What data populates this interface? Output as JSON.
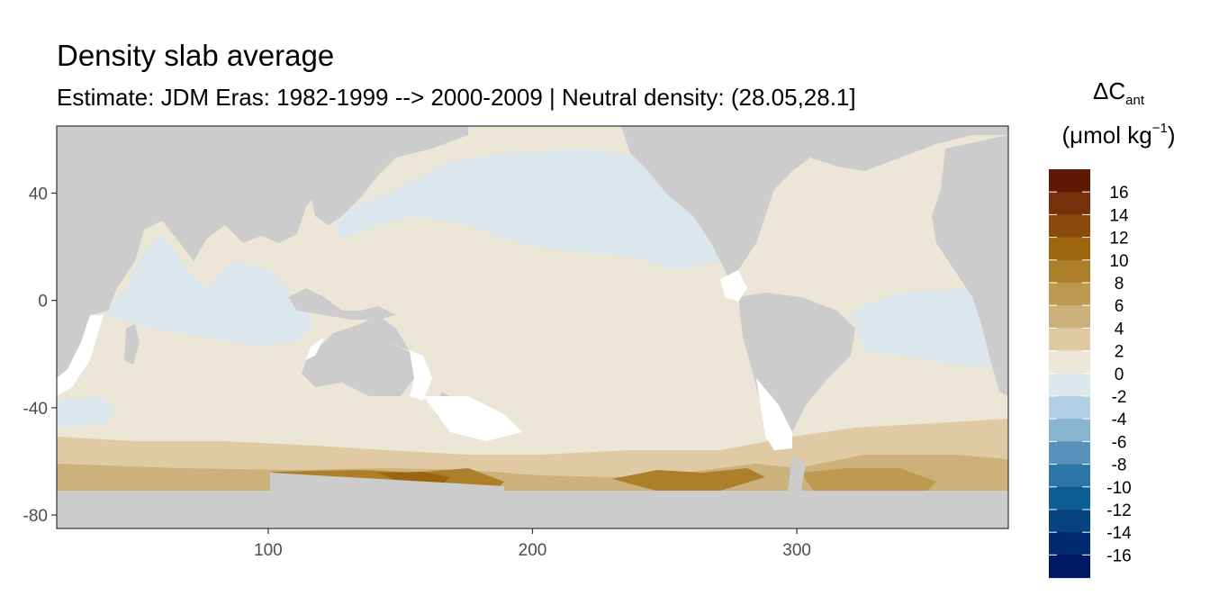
{
  "title": "Density slab average",
  "subtitle": "Estimate: JDM Eras: 1982-1999 --> 2000-2009 | Neutral density: (28.05,28.1]",
  "legend": {
    "title_symbol": "ΔC",
    "title_subscript": "ant",
    "unit_open": "(μmol kg",
    "unit_superscript": "−1",
    "unit_close": ")",
    "labels": [
      "16",
      "14",
      "12",
      "10",
      "8",
      "6",
      "4",
      "2",
      "0",
      "-2",
      "-4",
      "-6",
      "-8",
      "-10",
      "-12",
      "-14",
      "-16"
    ],
    "colors": [
      "#5e1a05",
      "#77310a",
      "#8a4a0b",
      "#9b650f",
      "#ad7f2a",
      "#bd994f",
      "#cdb17b",
      "#dfcaa3",
      "#ece6d7",
      "#dce7ed",
      "#b1cee2",
      "#88b4d0",
      "#5791bc",
      "#2c75a7",
      "#0d5c94",
      "#074282",
      "#002b73",
      "#001764"
    ]
  },
  "map": {
    "x_axis_ticks": [
      100,
      200,
      300
    ],
    "y_axis_ticks": [
      40,
      0,
      -40,
      -80
    ],
    "x_range": [
      20,
      380
    ],
    "y_range": [
      -85,
      65
    ],
    "land_color": "#cccccc",
    "no_data_color": "#ffffff",
    "panel_border": "#333333",
    "regions": [
      {
        "name": "north-pacific-negative",
        "value": "-2",
        "color": "#dce7ed"
      },
      {
        "name": "indian-ocean-negative",
        "value": "-2",
        "color": "#dce7ed"
      },
      {
        "name": "tropical-atlantic-negative",
        "value": "-2",
        "color": "#dce7ed"
      },
      {
        "name": "subtropical-band",
        "value": "0",
        "color": "#ece6d7"
      },
      {
        "name": "southern-ocean-band",
        "value": "2",
        "color": "#dfcaa3"
      },
      {
        "name": "antarctic-margin",
        "value": "4",
        "color": "#cdb17b"
      },
      {
        "name": "ross-sea-maximum",
        "value": "8",
        "color": "#ad7f2a"
      },
      {
        "name": "weddell-sea-maximum",
        "value": "6",
        "color": "#bd994f"
      }
    ]
  }
}
